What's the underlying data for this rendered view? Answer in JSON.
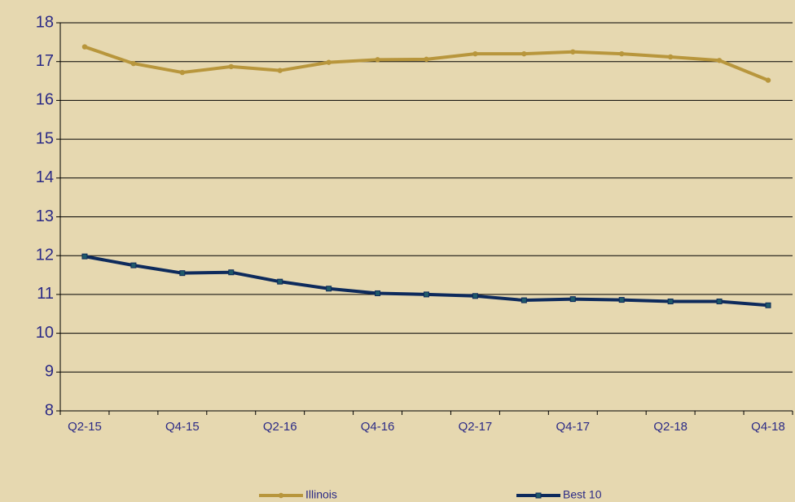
{
  "chart_data": {
    "type": "line",
    "categories": [
      "Q2-15",
      null,
      "Q4-15",
      null,
      "Q2-16",
      null,
      "Q4-16",
      null,
      "Q2-17",
      null,
      "Q4-17",
      null,
      "Q2-18",
      null,
      "Q4-18"
    ],
    "series": [
      {
        "name": "Illinois",
        "color": "#b8963c",
        "marker": "circle",
        "values": [
          17.38,
          16.95,
          16.72,
          16.87,
          16.77,
          16.98,
          17.05,
          17.06,
          17.2,
          17.2,
          17.25,
          17.2,
          17.12,
          17.03,
          16.52
        ]
      },
      {
        "name": "Best 10",
        "color": "#0d2a5c",
        "marker": "square",
        "values": [
          11.98,
          11.75,
          11.55,
          11.57,
          11.33,
          11.15,
          11.03,
          11.0,
          10.96,
          10.85,
          10.88,
          10.86,
          10.82,
          10.82,
          10.72
        ]
      }
    ],
    "ylim": [
      8,
      18
    ],
    "yticks": [
      8,
      9,
      10,
      11,
      12,
      13,
      14,
      15,
      16,
      17,
      18
    ],
    "grid": true,
    "legend": "bottom"
  }
}
